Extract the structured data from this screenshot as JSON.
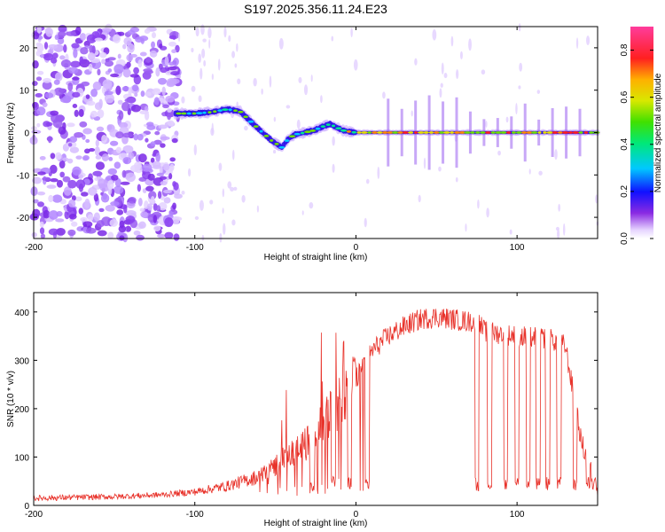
{
  "title": "S197.2025.356.11.24.E23",
  "chart_data": [
    {
      "type": "heatmap",
      "name": "spectrogram",
      "xlabel": "Height of straight line (km)",
      "ylabel": "Frequency (Hz)",
      "xlim": [
        -200,
        150
      ],
      "ylim": [
        -25,
        25
      ],
      "xticks": [
        -200,
        -100,
        0,
        100
      ],
      "yticks": [
        -20,
        -10,
        0,
        10,
        20
      ],
      "colorbar": {
        "label": "Normalized spectral amplitude",
        "range": [
          0,
          0.9
        ],
        "ticks": [
          "0.0",
          "0.2",
          "0.4",
          "0.6",
          "0.8"
        ]
      },
      "ridge": {
        "x": [
          -112,
          -100,
          -90,
          -80,
          -72,
          -65,
          -58,
          -52,
          -46,
          -42,
          -38,
          -32,
          -26,
          -20,
          -16,
          -12,
          -8,
          -4,
          0,
          150
        ],
        "y": [
          4.5,
          4.5,
          4.8,
          5.5,
          5.0,
          2.5,
          0.0,
          -2.0,
          -3.5,
          -1.5,
          -0.5,
          0.0,
          0.5,
          1.5,
          2.0,
          1.2,
          0.5,
          0.2,
          0.0,
          0.0
        ],
        "peak_amplitude": 0.9
      },
      "noise_region_end_km": -110
    },
    {
      "type": "line",
      "name": "snr",
      "xlabel": "Height of straight line (km)",
      "ylabel": "SNR (10 * v/v)",
      "xlim": [
        -200,
        150
      ],
      "ylim": [
        0,
        440
      ],
      "xticks": [
        -200,
        -100,
        0,
        100
      ],
      "yticks": [
        0,
        100,
        200,
        300,
        400
      ],
      "color": "#e8322a",
      "envelope": {
        "x": [
          -200,
          -150,
          -120,
          -100,
          -80,
          -60,
          -45,
          -30,
          -20,
          -10,
          0,
          10,
          20,
          30,
          40,
          50,
          60,
          70,
          75,
          80,
          100,
          120,
          130,
          140,
          150
        ],
        "y": [
          15,
          18,
          22,
          28,
          40,
          60,
          95,
          130,
          170,
          220,
          260,
          320,
          350,
          370,
          385,
          390,
          385,
          380,
          380,
          360,
          350,
          345,
          330,
          130,
          30
        ]
      },
      "dropouts_km": [
        -27,
        -14,
        -4,
        7,
        75,
        83,
        93,
        100,
        107,
        113,
        119,
        126,
        136,
        144,
        148
      ]
    }
  ]
}
